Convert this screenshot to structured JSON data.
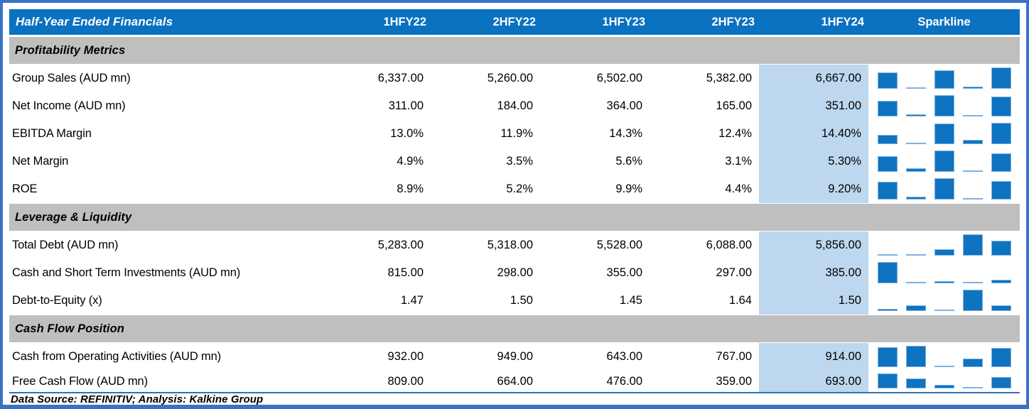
{
  "table": {
    "title": "Half-Year Ended Financials",
    "columns": [
      "1HFY22",
      "2HFY22",
      "1HFY23",
      "2HFY23",
      "1HFY24"
    ],
    "sparkline_header": "Sparkline",
    "highlight_column": "1HFY24",
    "sections": [
      {
        "title": "Profitability Metrics",
        "rows": [
          {
            "label": "Group Sales (AUD mn)",
            "values": [
              "6,337.00",
              "5,260.00",
              "6,502.00",
              "5,382.00",
              "6,667.00"
            ],
            "spark": [
              6337,
              5260,
              6502,
              5382,
              6667
            ]
          },
          {
            "label": "Net Income (AUD mn)",
            "values": [
              "311.00",
              "184.00",
              "364.00",
              "165.00",
              "351.00"
            ],
            "spark": [
              311,
              184,
              364,
              165,
              351
            ]
          },
          {
            "label": "EBITDA Margin",
            "values": [
              "13.0%",
              "11.9%",
              "14.3%",
              "12.4%",
              "14.40%"
            ],
            "spark": [
              13.0,
              11.9,
              14.3,
              12.4,
              14.4
            ]
          },
          {
            "label": "Net Margin",
            "values": [
              "4.9%",
              "3.5%",
              "5.6%",
              "3.1%",
              "5.30%"
            ],
            "spark": [
              4.9,
              3.5,
              5.6,
              3.1,
              5.3
            ]
          },
          {
            "label": "ROE",
            "values": [
              "8.9%",
              "5.2%",
              "9.9%",
              "4.4%",
              "9.20%"
            ],
            "spark": [
              8.9,
              5.2,
              9.9,
              4.4,
              9.2
            ]
          }
        ]
      },
      {
        "title": "Leverage & Liquidity",
        "rows": [
          {
            "label": "Total Debt (AUD mn)",
            "values": [
              "5,283.00",
              "5,318.00",
              "5,528.00",
              "6,088.00",
              "5,856.00"
            ],
            "spark": [
              5283,
              5318,
              5528,
              6088,
              5856
            ]
          },
          {
            "label": "Cash and Short Term Investments (AUD mn)",
            "values": [
              "815.00",
              "298.00",
              "355.00",
              "297.00",
              "385.00"
            ],
            "spark": [
              815,
              298,
              355,
              297,
              385
            ]
          },
          {
            "label": "Debt-to-Equity (x)",
            "values": [
              "1.47",
              "1.50",
              "1.45",
              "1.64",
              "1.50"
            ],
            "spark": [
              1.47,
              1.5,
              1.45,
              1.64,
              1.5
            ]
          }
        ]
      },
      {
        "title": "Cash Flow Position",
        "rows": [
          {
            "label": "Cash from Operating Activities (AUD mn)",
            "values": [
              "932.00",
              "949.00",
              "643.00",
              "767.00",
              "914.00"
            ],
            "spark": [
              932,
              949,
              643,
              767,
              914
            ]
          },
          {
            "label": "Free Cash Flow (AUD mn)",
            "values": [
              "809.00",
              "664.00",
              "476.00",
              "359.00",
              "693.00"
            ],
            "spark": [
              809,
              664,
              476,
              359,
              693
            ]
          }
        ]
      }
    ],
    "footer": "Data Source: REFINITIV; Analysis: Kalkine Group"
  },
  "colors": {
    "header_blue": "#0b71c1",
    "section_gray": "#bfbfbf",
    "highlight_blue": "#bdd7ee",
    "spark_bar_blue": "#0e73c0",
    "border_blue": "#3b72c6",
    "footer_rule_blue": "#2e74b5",
    "header_text": "#ffffff",
    "body_text": "#000000"
  },
  "chart_data": [
    {
      "type": "bar",
      "title": "Group Sales (AUD mn)",
      "categories": [
        "1HFY22",
        "2HFY22",
        "1HFY23",
        "2HFY23",
        "1HFY24"
      ],
      "values": [
        6337,
        5260,
        6502,
        5382,
        6667
      ],
      "legend_position": "none",
      "grid": false
    },
    {
      "type": "bar",
      "title": "Net Income (AUD mn)",
      "categories": [
        "1HFY22",
        "2HFY22",
        "1HFY23",
        "2HFY23",
        "1HFY24"
      ],
      "values": [
        311,
        184,
        364,
        165,
        351
      ],
      "legend_position": "none",
      "grid": false
    },
    {
      "type": "bar",
      "title": "EBITDA Margin (%)",
      "categories": [
        "1HFY22",
        "2HFY22",
        "1HFY23",
        "2HFY23",
        "1HFY24"
      ],
      "values": [
        13.0,
        11.9,
        14.3,
        12.4,
        14.4
      ],
      "legend_position": "none",
      "grid": false
    },
    {
      "type": "bar",
      "title": "Net Margin (%)",
      "categories": [
        "1HFY22",
        "2HFY22",
        "1HFY23",
        "2HFY23",
        "1HFY24"
      ],
      "values": [
        4.9,
        3.5,
        5.6,
        3.1,
        5.3
      ],
      "legend_position": "none",
      "grid": false
    },
    {
      "type": "bar",
      "title": "ROE (%)",
      "categories": [
        "1HFY22",
        "2HFY22",
        "1HFY23",
        "2HFY23",
        "1HFY24"
      ],
      "values": [
        8.9,
        5.2,
        9.9,
        4.4,
        9.2
      ],
      "legend_position": "none",
      "grid": false
    },
    {
      "type": "bar",
      "title": "Total Debt (AUD mn)",
      "categories": [
        "1HFY22",
        "2HFY22",
        "1HFY23",
        "2HFY23",
        "1HFY24"
      ],
      "values": [
        5283,
        5318,
        5528,
        6088,
        5856
      ],
      "legend_position": "none",
      "grid": false
    },
    {
      "type": "bar",
      "title": "Cash and Short Term Investments (AUD mn)",
      "categories": [
        "1HFY22",
        "2HFY22",
        "1HFY23",
        "2HFY23",
        "1HFY24"
      ],
      "values": [
        815,
        298,
        355,
        297,
        385
      ],
      "legend_position": "none",
      "grid": false
    },
    {
      "type": "bar",
      "title": "Debt-to-Equity (x)",
      "categories": [
        "1HFY22",
        "2HFY22",
        "1HFY23",
        "2HFY23",
        "1HFY24"
      ],
      "values": [
        1.47,
        1.5,
        1.45,
        1.64,
        1.5
      ],
      "legend_position": "none",
      "grid": false
    },
    {
      "type": "bar",
      "title": "Cash from Operating Activities (AUD mn)",
      "categories": [
        "1HFY22",
        "2HFY22",
        "1HFY23",
        "2HFY23",
        "1HFY24"
      ],
      "values": [
        932,
        949,
        643,
        767,
        914
      ],
      "legend_position": "none",
      "grid": false
    },
    {
      "type": "bar",
      "title": "Free Cash Flow (AUD mn)",
      "categories": [
        "1HFY22",
        "2HFY22",
        "1HFY23",
        "2HFY23",
        "1HFY24"
      ],
      "values": [
        809,
        664,
        476,
        359,
        693
      ],
      "legend_position": "none",
      "grid": false
    }
  ]
}
